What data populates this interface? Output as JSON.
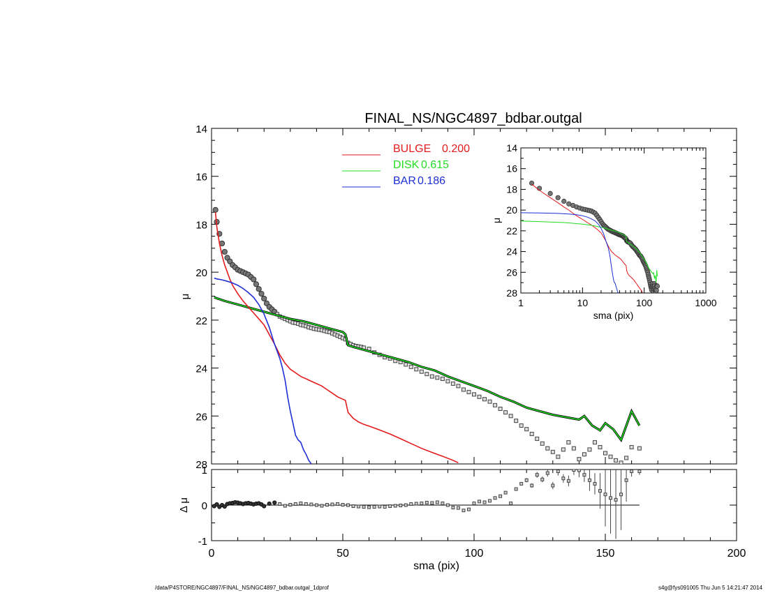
{
  "title": "FINAL_NS/NGC4897_bdbar.outgal",
  "footer": {
    "path": "/data/P4STORE/NGC4897/FINAL_NS/NGC4897_bdbar.outgal_1dprof",
    "stamp": "s4g@fys091005  Thu Jun  5 14:21:47 2014"
  },
  "colors": {
    "bulge": "#e31a1c",
    "disk": "#22dd22",
    "bar": "#1f2fd6",
    "data": "#555555"
  },
  "chart_data": [
    {
      "id": "main",
      "type": "line",
      "xlabel": "",
      "ylabel": "μ",
      "xlim": [
        0,
        200
      ],
      "ylim": [
        14,
        28
      ],
      "y_inverted": true,
      "yticks": [
        14,
        16,
        18,
        20,
        22,
        24,
        26,
        28
      ],
      "legend": [
        {
          "label": "BULGE",
          "value": "0.200",
          "color": "#e31a1c"
        },
        {
          "label": "DISK",
          "value": "0.615",
          "color": "#22dd22"
        },
        {
          "label": "BAR",
          "value": "0.186",
          "color": "#1f2fd6"
        }
      ],
      "legend_position": "top-center",
      "series": [
        {
          "key": "bulge",
          "color": "#e31a1c",
          "x": [
            1.5,
            2,
            3,
            4,
            5,
            6,
            7,
            8,
            10,
            12,
            14,
            16,
            18,
            20,
            22,
            24,
            26,
            28,
            30,
            32,
            34,
            36,
            38,
            40,
            42,
            44,
            46,
            48,
            50,
            51,
            52,
            54,
            56,
            58,
            60,
            64,
            68,
            72,
            76,
            80,
            84,
            88,
            92,
            94
          ],
          "y": [
            17.5,
            18.1,
            18.8,
            19.3,
            19.7,
            20.0,
            20.3,
            20.55,
            20.9,
            21.2,
            21.45,
            21.7,
            21.95,
            22.2,
            22.6,
            23.0,
            23.45,
            23.8,
            24.05,
            24.2,
            24.35,
            24.45,
            24.55,
            24.65,
            24.75,
            24.9,
            25.05,
            25.2,
            25.3,
            25.35,
            25.85,
            26.1,
            26.25,
            26.35,
            26.42,
            26.58,
            26.75,
            26.95,
            27.15,
            27.35,
            27.52,
            27.68,
            27.85,
            27.95
          ]
        },
        {
          "key": "bar",
          "color": "#1f2fd6",
          "x": [
            1,
            2,
            4,
            6,
            8,
            10,
            12,
            14,
            16,
            18,
            20,
            22,
            24,
            26,
            27,
            28,
            29,
            30,
            31,
            32,
            33,
            34,
            35,
            36,
            37,
            38
          ],
          "y": [
            20.25,
            20.28,
            20.32,
            20.38,
            20.45,
            20.55,
            20.68,
            20.85,
            21.05,
            21.35,
            21.75,
            22.3,
            23.0,
            23.6,
            24.0,
            24.5,
            25.2,
            25.8,
            26.3,
            26.8,
            27.0,
            27.1,
            27.4,
            27.6,
            27.85,
            28.0
          ]
        },
        {
          "key": "disk",
          "color": "#22dd22",
          "double": true,
          "x": [
            1,
            5,
            10,
            15,
            20,
            25,
            30,
            35,
            40,
            45,
            50,
            51,
            52,
            55,
            60,
            65,
            70,
            75,
            80,
            85,
            90,
            95,
            100,
            105,
            110,
            115,
            120,
            125,
            130,
            135,
            140,
            142,
            145,
            148,
            150,
            153,
            156,
            160,
            163
          ],
          "y": [
            21.05,
            21.2,
            21.35,
            21.5,
            21.65,
            21.8,
            21.95,
            22.05,
            22.2,
            22.35,
            22.5,
            22.6,
            23.05,
            23.15,
            23.3,
            23.45,
            23.6,
            23.75,
            23.95,
            24.1,
            24.35,
            24.55,
            24.75,
            24.95,
            25.2,
            25.4,
            25.65,
            25.8,
            25.95,
            26.05,
            26.15,
            26.0,
            26.4,
            26.6,
            26.3,
            26.55,
            27.0,
            25.8,
            26.4
          ]
        }
      ],
      "data_points": {
        "x": [
          1.5,
          2,
          3,
          4,
          5,
          6,
          7,
          8,
          9,
          10,
          11,
          12,
          13,
          14,
          15,
          16,
          17,
          18,
          19,
          20,
          21,
          22,
          23,
          24,
          25,
          26,
          27,
          28,
          29,
          30,
          31,
          32,
          33,
          34,
          35,
          36,
          37,
          38,
          39,
          40,
          41,
          42,
          43,
          44,
          45,
          46,
          47,
          48,
          49,
          50,
          51,
          52,
          53,
          54,
          55,
          56,
          57,
          58,
          60,
          62,
          64,
          66,
          68,
          70,
          72,
          74,
          76,
          78,
          80,
          82,
          84,
          86,
          88,
          90,
          92,
          94,
          96,
          98,
          100,
          102,
          104,
          106,
          108,
          110,
          112,
          114,
          116,
          118,
          120,
          122,
          124,
          126,
          128,
          130,
          132,
          134,
          136,
          138,
          140,
          142,
          144,
          146,
          148,
          150,
          152,
          154,
          156,
          158,
          160,
          163
        ],
        "y": [
          17.4,
          17.9,
          18.4,
          18.8,
          19.15,
          19.4,
          19.55,
          19.7,
          19.8,
          19.9,
          19.95,
          20.0,
          20.05,
          20.1,
          20.2,
          20.3,
          20.5,
          20.7,
          20.9,
          21.1,
          21.3,
          21.45,
          21.55,
          21.65,
          21.75,
          21.85,
          21.9,
          21.95,
          22.0,
          22.05,
          22.1,
          22.12,
          22.15,
          22.2,
          22.22,
          22.25,
          22.3,
          22.33,
          22.36,
          22.38,
          22.4,
          22.42,
          22.45,
          22.48,
          22.5,
          22.55,
          22.6,
          22.65,
          22.7,
          22.75,
          22.8,
          22.95,
          23.0,
          23.05,
          23.08,
          23.1,
          23.12,
          23.15,
          23.2,
          23.35,
          23.45,
          23.55,
          23.6,
          23.7,
          23.75,
          23.85,
          23.95,
          24.05,
          24.15,
          24.25,
          24.35,
          24.4,
          24.45,
          24.55,
          24.65,
          24.75,
          24.9,
          25.0,
          25.1,
          25.2,
          25.3,
          25.4,
          25.55,
          25.7,
          25.85,
          26.0,
          26.2,
          26.4,
          26.55,
          26.75,
          26.95,
          27.15,
          27.35,
          27.5,
          27.7,
          27.4,
          27.1,
          27.35,
          27.8,
          27.6,
          27.4,
          27.1,
          27.3,
          27.55,
          27.7,
          27.85,
          27.95,
          27.75,
          27.3,
          27.35
        ]
      }
    },
    {
      "id": "inset",
      "type": "line",
      "xlabel": "sma (pix)",
      "ylabel": "μ",
      "xscale": "log",
      "xlim": [
        1,
        1000
      ],
      "ylim": [
        14,
        28
      ],
      "y_inverted": true,
      "xticks": [
        1,
        10,
        100,
        1000
      ],
      "yticks": [
        14,
        16,
        18,
        20,
        22,
        24,
        26,
        28
      ],
      "series_from": "main"
    },
    {
      "id": "residual",
      "type": "scatter",
      "xlabel": "sma (pix)",
      "ylabel": "Δ μ",
      "xlim": [
        0,
        200
      ],
      "ylim": [
        -1,
        1
      ],
      "xticks": [
        0,
        50,
        100,
        150,
        200
      ],
      "yticks": [
        -1,
        0,
        1
      ],
      "zero_line": {
        "x_end": 163
      },
      "points": {
        "x": [
          1,
          2,
          3,
          4,
          5,
          6,
          7,
          8,
          9,
          10,
          11,
          12,
          13,
          14,
          15,
          16,
          17,
          18,
          19,
          20,
          22,
          24,
          26,
          28,
          30,
          32,
          34,
          36,
          38,
          40,
          42,
          44,
          46,
          48,
          50,
          52,
          54,
          56,
          58,
          60,
          62,
          64,
          66,
          68,
          70,
          72,
          74,
          76,
          78,
          80,
          82,
          84,
          86,
          88,
          90,
          92,
          94,
          96,
          98,
          100,
          102,
          104,
          106,
          108,
          110,
          112,
          114,
          116,
          118,
          120,
          122,
          124,
          126,
          128,
          130,
          132,
          134,
          136,
          138,
          140,
          142,
          144,
          146,
          148,
          150,
          152,
          154,
          156,
          158,
          160,
          163
        ],
        "y": [
          -0.03,
          0.02,
          -0.05,
          0.0,
          -0.04,
          0.03,
          0.05,
          0.06,
          0.08,
          0.07,
          0.05,
          0.03,
          0.05,
          0.06,
          0.04,
          0.02,
          0.04,
          0.05,
          0.02,
          -0.03,
          0.04,
          0.07,
          0.03,
          -0.02,
          0.01,
          0.03,
          0.05,
          0.03,
          0.02,
          0.0,
          -0.02,
          0.01,
          0.02,
          0.03,
          0.01,
          0.0,
          -0.03,
          -0.04,
          -0.05,
          -0.06,
          -0.05,
          -0.04,
          -0.05,
          -0.03,
          -0.02,
          -0.01,
          0.0,
          0.03,
          0.04,
          0.05,
          0.07,
          0.06,
          0.08,
          0.05,
          0.0,
          -0.07,
          -0.08,
          -0.15,
          -0.12,
          0.05,
          0.1,
          0.08,
          0.12,
          0.2,
          0.25,
          0.35,
          0.05,
          0.45,
          0.6,
          0.7,
          0.55,
          0.85,
          0.72,
          0.9,
          0.55,
          0.95,
          0.75,
          0.68,
          1.0,
          0.98,
          0.85,
          0.7,
          0.6,
          0.4,
          0.3,
          0.2,
          0.15,
          0.3,
          0.7,
          0.95,
          0.95
        ],
        "errors": [
          0.02,
          0.02,
          0.02,
          0.02,
          0.02,
          0.02,
          0.02,
          0.02,
          0.02,
          0.02,
          0.02,
          0.02,
          0.02,
          0.02,
          0.02,
          0.02,
          0.02,
          0.02,
          0.02,
          0.02,
          0.02,
          0.02,
          0.02,
          0.02,
          0.02,
          0.02,
          0.02,
          0.02,
          0.02,
          0.02,
          0.02,
          0.02,
          0.02,
          0.02,
          0.02,
          0.02,
          0.02,
          0.02,
          0.02,
          0.02,
          0.02,
          0.02,
          0.02,
          0.02,
          0.02,
          0.02,
          0.02,
          0.02,
          0.02,
          0.02,
          0.02,
          0.02,
          0.02,
          0.02,
          0.02,
          0.02,
          0.02,
          0.02,
          0.02,
          0.03,
          0.03,
          0.03,
          0.03,
          0.03,
          0.04,
          0.04,
          0.04,
          0.05,
          0.05,
          0.06,
          0.06,
          0.08,
          0.08,
          0.1,
          0.1,
          0.12,
          0.12,
          0.15,
          0.15,
          0.2,
          0.2,
          0.3,
          0.3,
          0.5,
          0.9,
          1.0,
          1.1,
          1.0,
          0.6,
          0.15,
          0.1
        ]
      }
    }
  ]
}
